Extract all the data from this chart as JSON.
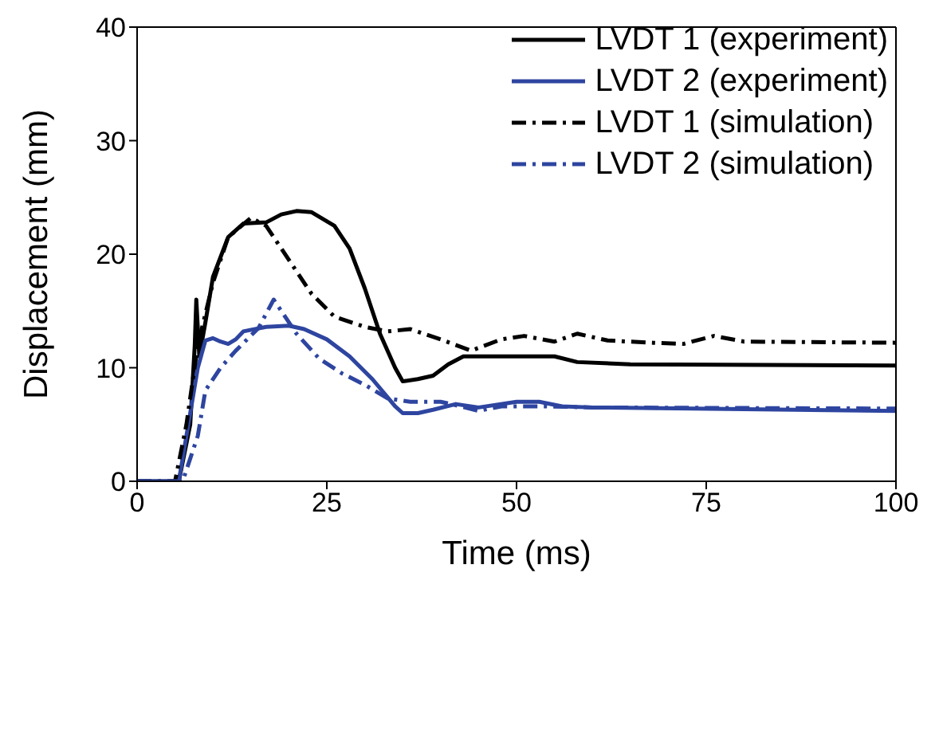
{
  "chart_data": {
    "type": "line",
    "xlabel": "Time (ms)",
    "ylabel": "Displacement (mm)",
    "xlim": [
      0,
      100
    ],
    "xticks": [
      0,
      25,
      50,
      75,
      100
    ],
    "ylim": [
      0,
      40
    ],
    "yticks": [
      0,
      10,
      20,
      30,
      40
    ],
    "legend": "top right",
    "marker": "none",
    "series": [
      {
        "name": "LVDT 1 (experiment)",
        "color": "#000000",
        "line_style": "solid",
        "x": [
          0,
          5.5,
          7,
          7.6,
          7.8,
          8.2,
          9,
          10,
          12,
          14,
          17,
          19,
          21,
          23,
          26,
          28,
          30,
          32,
          34,
          35,
          37,
          39,
          41,
          43,
          55,
          58,
          65,
          100
        ],
        "values": [
          0,
          0,
          5,
          12,
          16,
          11,
          14,
          18,
          21.5,
          22.7,
          22.8,
          23.5,
          23.8,
          23.7,
          22.5,
          20.5,
          17,
          13,
          10,
          8.8,
          9,
          9.3,
          10.3,
          11,
          11,
          10.5,
          10.3,
          10.2
        ]
      },
      {
        "name": "LVDT 2 (experiment)",
        "color": "#2e45a0",
        "line_style": "solid",
        "x": [
          0,
          5.5,
          7,
          8,
          9,
          10,
          11,
          12,
          13,
          14,
          17,
          20,
          22,
          25,
          28,
          31,
          34,
          35,
          37,
          39,
          42,
          45,
          50,
          53,
          56,
          60,
          100
        ],
        "values": [
          0,
          0,
          6,
          10,
          12.4,
          12.6,
          12.3,
          12.1,
          12.5,
          13.2,
          13.6,
          13.7,
          13.4,
          12.5,
          11,
          9,
          6.6,
          6,
          6,
          6.3,
          6.8,
          6.5,
          7,
          7,
          6.6,
          6.5,
          6.2
        ]
      },
      {
        "name": "LVDT 1 (simulation)",
        "color": "#000000",
        "line_style": "dashdot",
        "x": [
          0,
          5,
          6.5,
          8,
          10,
          12,
          15,
          17,
          20,
          23,
          26,
          30,
          33,
          36,
          40,
          44,
          48,
          51,
          55,
          58,
          62,
          68,
          72,
          76,
          80,
          100
        ],
        "values": [
          0,
          0,
          5,
          12,
          17.5,
          21.5,
          23.2,
          22.5,
          19.5,
          16.5,
          14.5,
          13.6,
          13.2,
          13.4,
          12.5,
          11.5,
          12.5,
          12.8,
          12.3,
          13,
          12.4,
          12.2,
          12.1,
          12.8,
          12.3,
          12.2
        ]
      },
      {
        "name": "LVDT 2 (simulation)",
        "color": "#2e45a0",
        "line_style": "dashdot",
        "x": [
          0,
          6,
          8,
          9,
          11,
          13,
          16,
          18,
          19,
          21,
          24,
          27,
          30,
          33,
          36,
          40,
          42,
          45,
          48,
          54,
          60,
          100
        ],
        "values": [
          0,
          0,
          4,
          8,
          10,
          11.5,
          13.5,
          16,
          15,
          13,
          10.8,
          9.5,
          8.5,
          7.3,
          7,
          7,
          6.7,
          6.2,
          6.6,
          6.6,
          6.5,
          6.4
        ]
      }
    ]
  }
}
